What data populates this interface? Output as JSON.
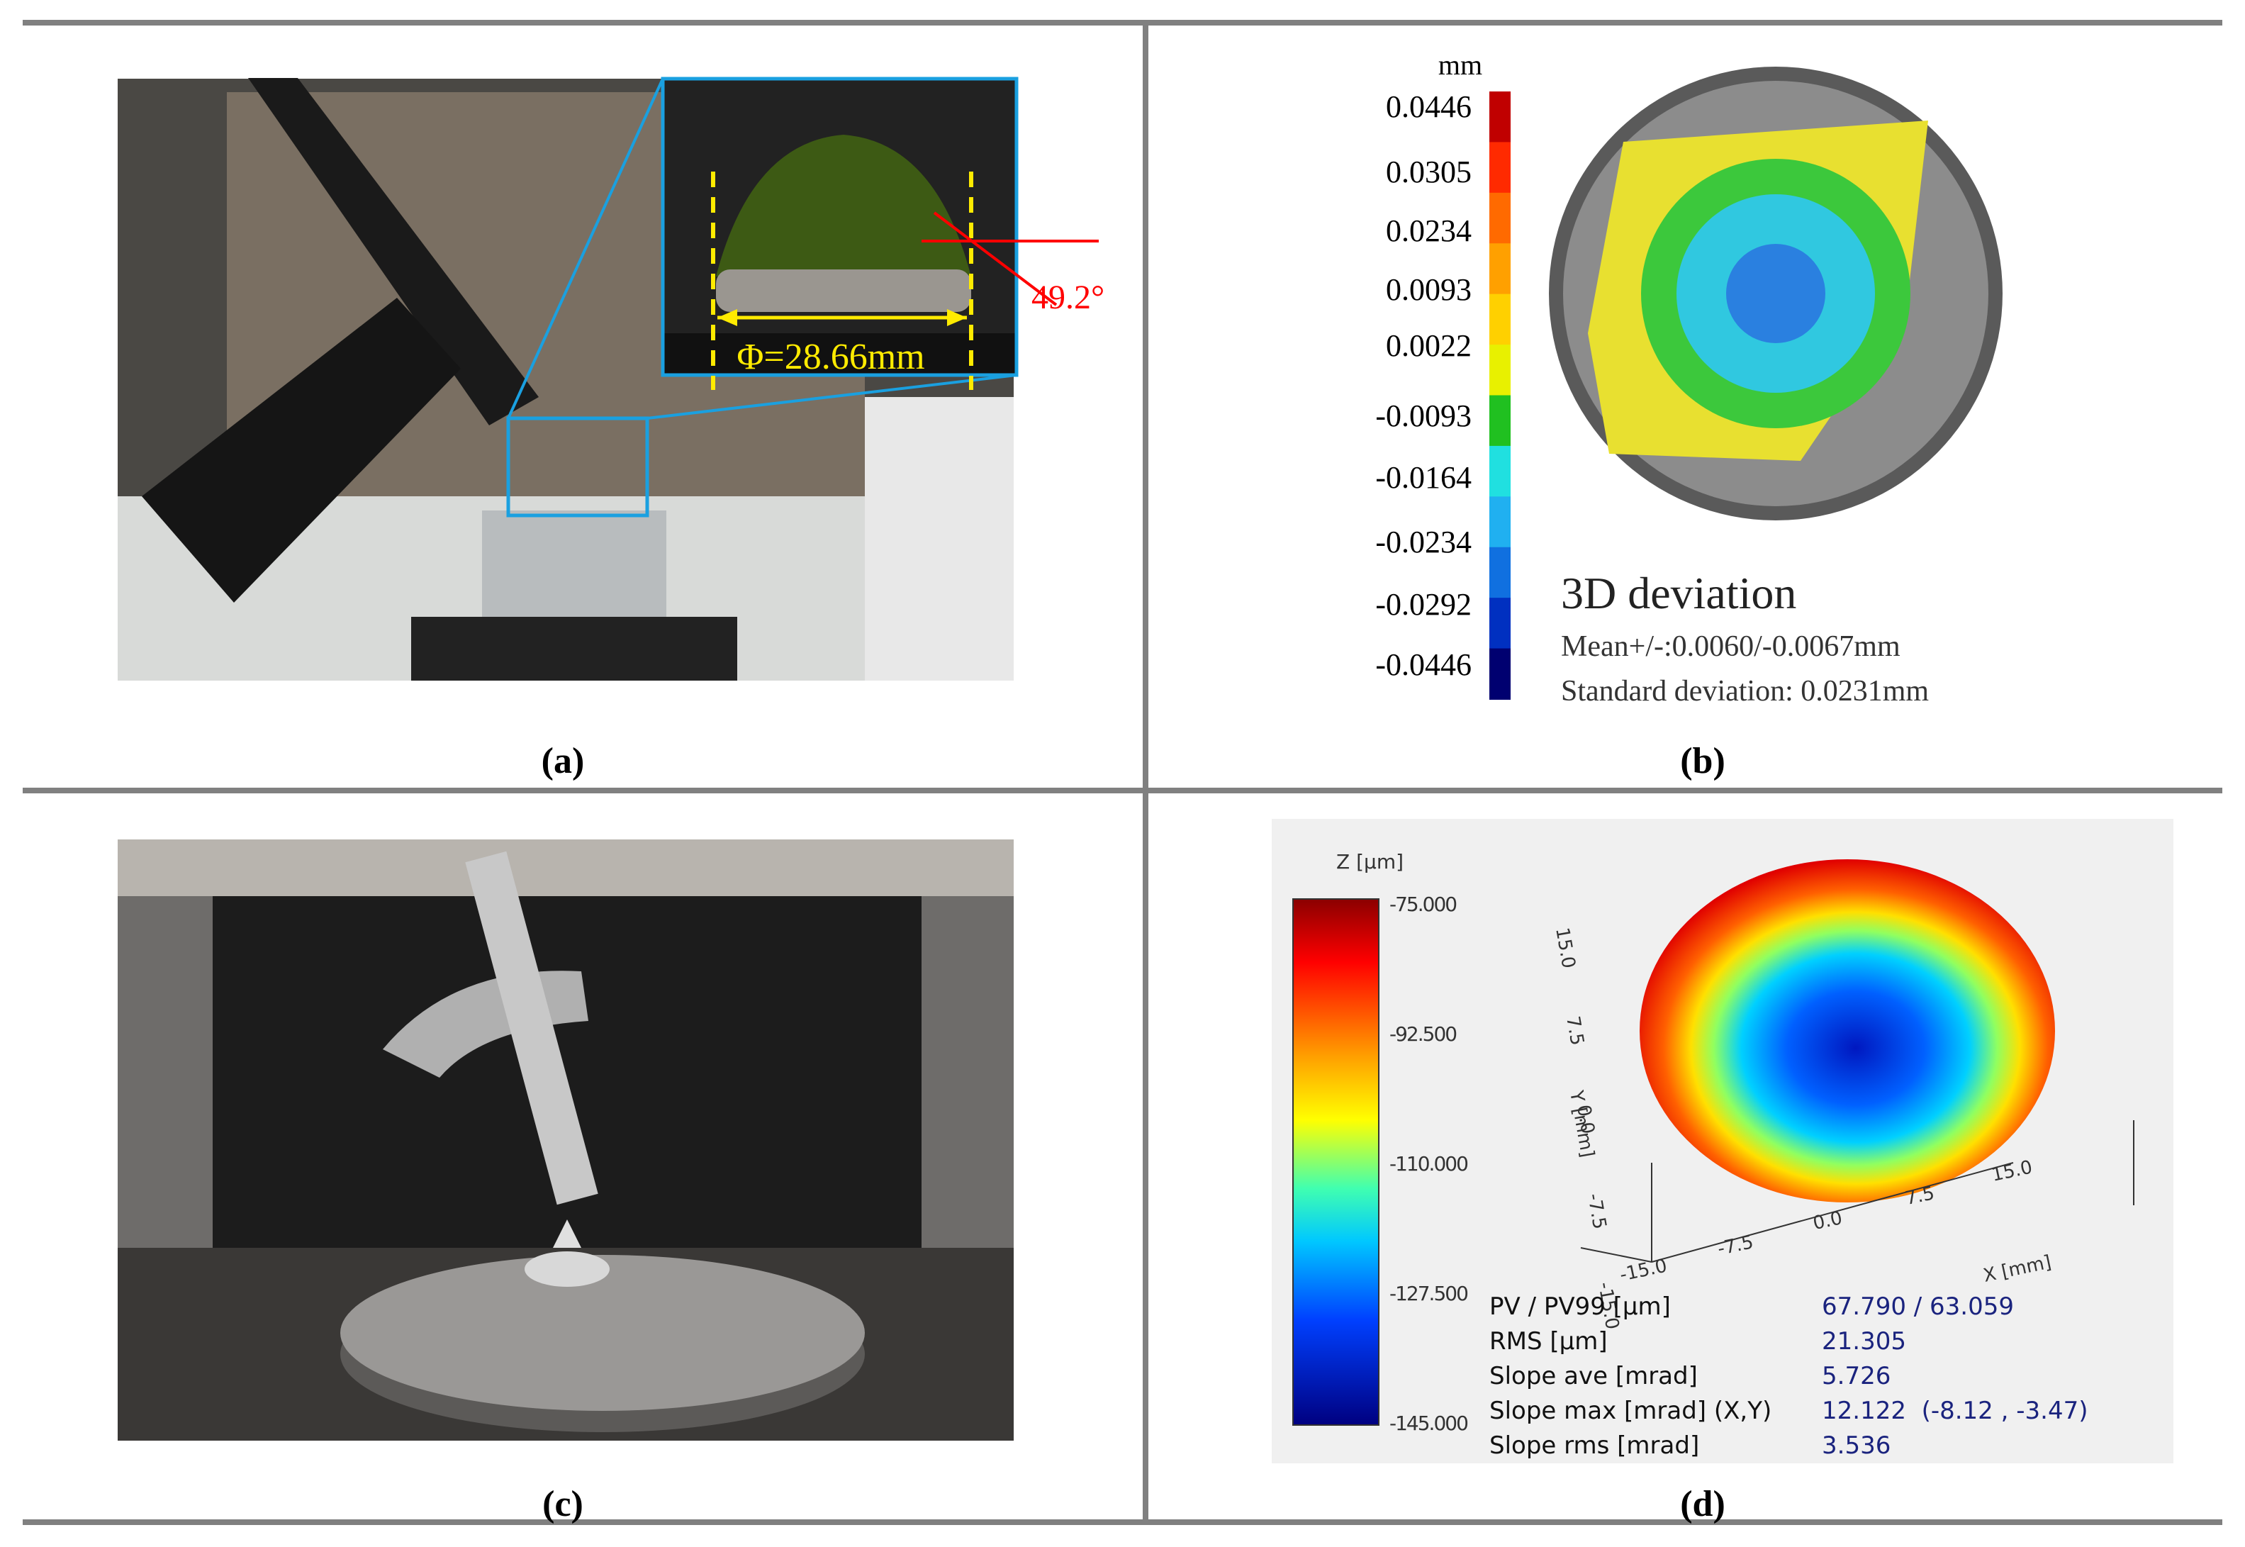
{
  "panels": [
    {
      "caption": "(a)",
      "annotations": {
        "diameter": "Φ=28.66mm",
        "angle": "49.2°"
      }
    },
    {
      "caption": "(b)",
      "colorbar": {
        "unit": "mm",
        "labels": [
          "0.0446",
          "0.0305",
          "0.0234",
          "0.0093",
          "0.0022",
          "-0.0093",
          "-0.0164",
          "-0.0234",
          "-0.0292",
          "-0.0446"
        ]
      },
      "title": "3D deviation",
      "stats": [
        "Mean+/-:0.0060/-0.0067mm",
        "Standard deviation: 0.0231mm"
      ]
    },
    {
      "caption": "(c)"
    },
    {
      "caption": "(d)",
      "colorbar": {
        "unit": "Z [µm]",
        "labels": [
          "-75.000",
          "-92.500",
          "-110.000",
          "-127.500",
          "-145.000"
        ]
      },
      "axes": {
        "y_label": "Y [mm]",
        "y_ticks": [
          "15.0",
          "7.5",
          "0.0",
          "-7.5",
          "-15.0"
        ],
        "x_label": "X [mm]",
        "x_ticks": [
          "-15.0",
          "-7.5",
          "0.0",
          "7.5",
          "15.0"
        ]
      },
      "stats": [
        [
          "PV / PV99 [µm]",
          "67.790 / 63.059"
        ],
        [
          "RMS [µm]",
          "21.305"
        ],
        [
          "Slope ave [mrad]",
          "5.726"
        ],
        [
          "Slope max [mrad] (X,Y)",
          "12.122  (-8.12 , -3.47)"
        ],
        [
          "Slope rms [mrad]",
          "3.536"
        ]
      ]
    }
  ]
}
